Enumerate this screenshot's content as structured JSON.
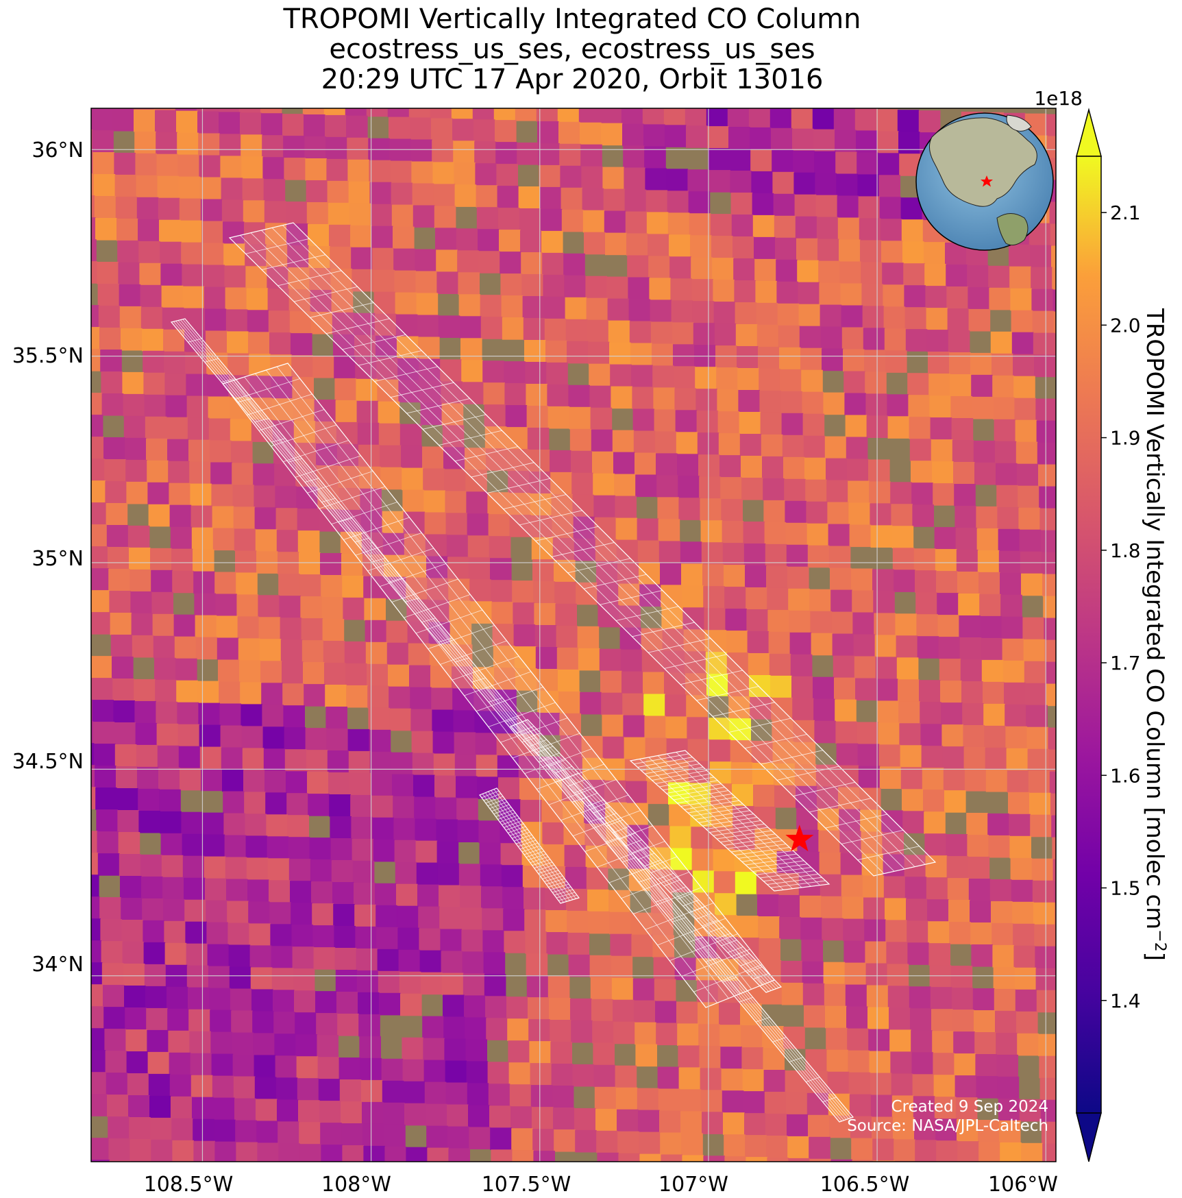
{
  "title": {
    "line1": "TROPOMI Vertically Integrated CO Column",
    "line2": "ecostress_us_ses, ecostress_us_ses",
    "line3": "20:29 UTC 17 Apr 2020, Orbit 13016"
  },
  "map": {
    "lat_ticks": [
      "36°N",
      "35.5°N",
      "35°N",
      "34.5°N",
      "34°N"
    ],
    "lon_ticks": [
      "108.5°W",
      "108°W",
      "107.5°W",
      "107°W",
      "106.5°W",
      "106°W"
    ],
    "lat_range": [
      33.55,
      36.1
    ],
    "lon_range": [
      -108.83,
      -105.97
    ],
    "target_marker": {
      "lat": 34.33,
      "lon": -106.73,
      "symbol": "star",
      "color": "#ff0000"
    },
    "grid": true,
    "basemap": "satellite imagery",
    "credit_line1": "Created 9 Sep 2024",
    "credit_line2": "Source: NASA/JPL-Caltech"
  },
  "inset_globe": {
    "marker_color": "#ff0000",
    "marker": "star"
  },
  "colorbar": {
    "label": "TROPOMI Vertically Integrated CO Column [molec cm",
    "label_sup": "−2",
    "label_end": "]",
    "multiplier": "1e18",
    "ticks": [
      "1.4",
      "1.5",
      "1.6",
      "1.7",
      "1.8",
      "1.9",
      "2.0",
      "2.1"
    ],
    "vmin": 1.3,
    "vmax": 2.15,
    "colormap": "plasma",
    "extend": "both"
  },
  "chart_data": {
    "type": "heatmap",
    "title": "TROPOMI Vertically Integrated CO Column",
    "subtitle": "ecostress_us_ses, ecostress_us_ses / 20:29 UTC 17 Apr 2020, Orbit 13016",
    "value_label": "TROPOMI Vertically Integrated CO Column [molec cm−2]",
    "value_range": [
      1.3,
      2.15
    ],
    "value_scale": "1e18",
    "x_range": [
      -108.83,
      -105.97
    ],
    "y_range": [
      33.55,
      36.1
    ],
    "x_ticks": [
      -108.5,
      -108.0,
      -107.5,
      -107.0,
      -106.5,
      -106.0
    ],
    "y_ticks": [
      34.0,
      34.5,
      35.0,
      35.5,
      36.0
    ],
    "typical_values": "mostly 1.75–2.0e18 molec cm−2; lower (1.45–1.65e18) in the southwest and along the northern edge; highest (~2.1e18) in isolated pixels near 107.0°W 34.4–34.7°N"
  }
}
